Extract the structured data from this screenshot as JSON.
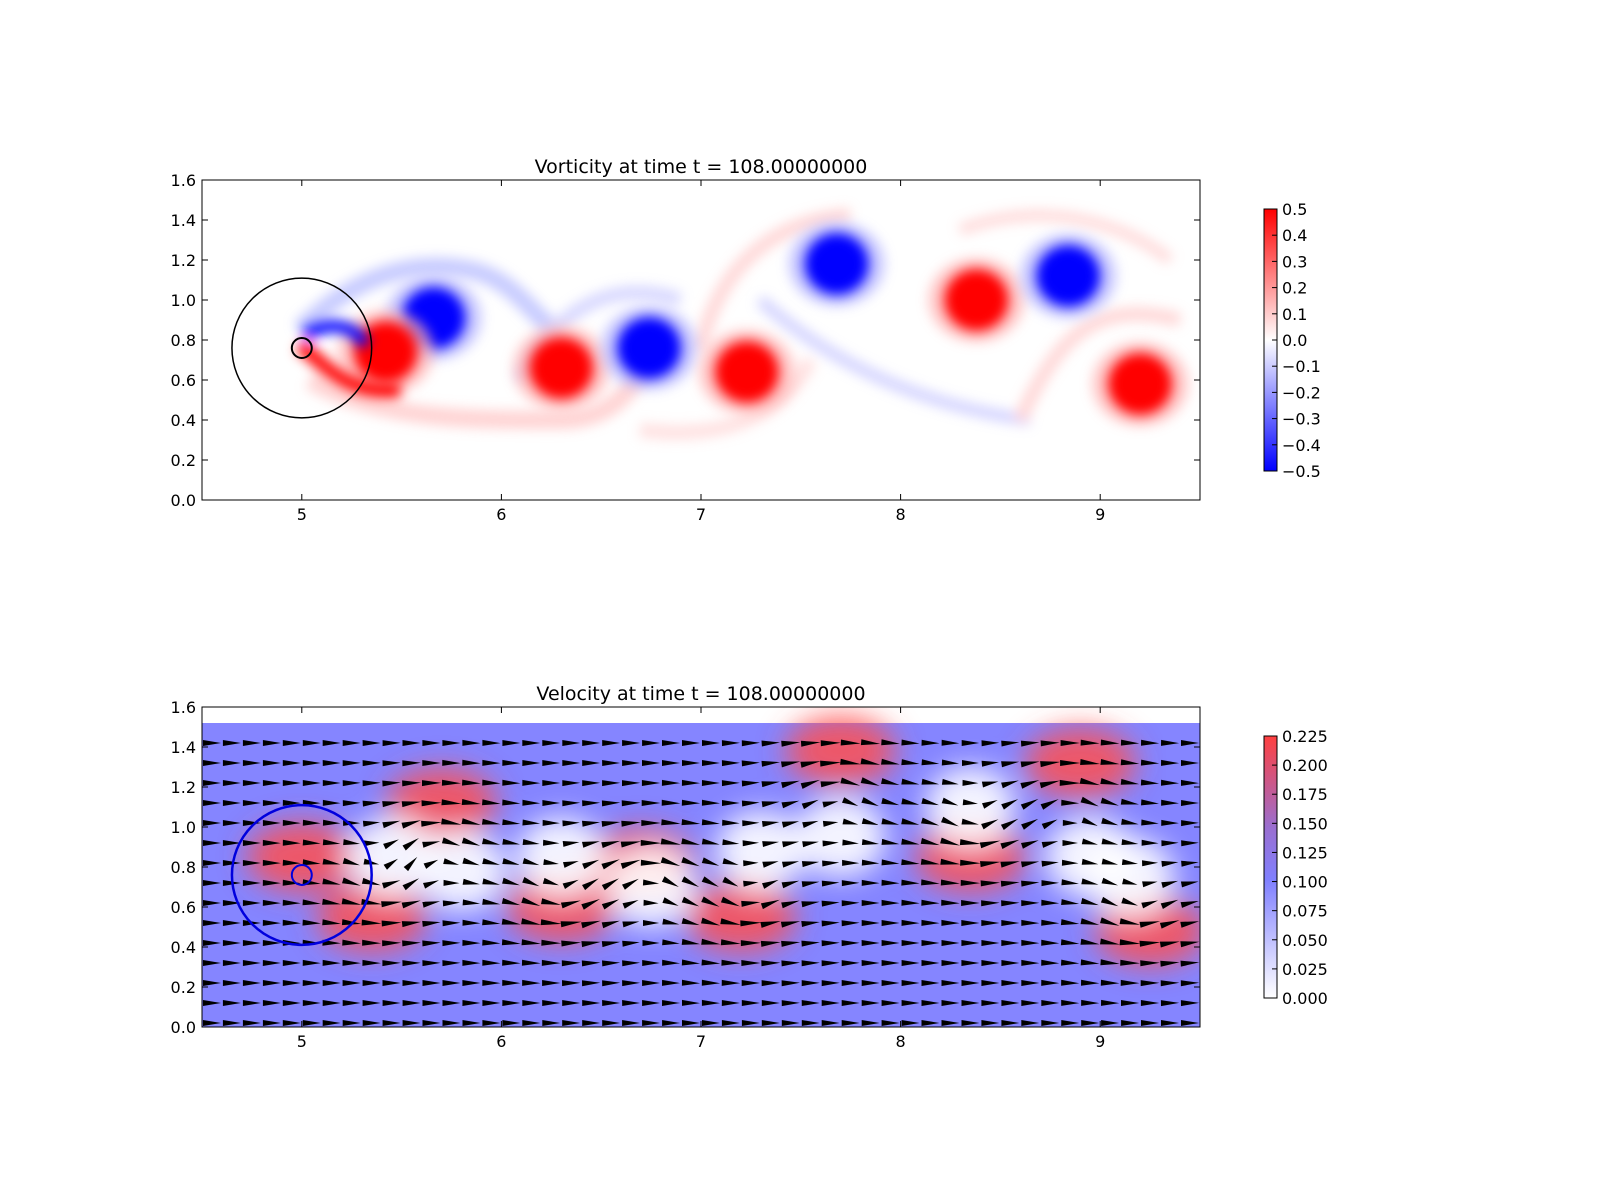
{
  "chart_data": [
    {
      "type": "heatmap",
      "title": "Vorticity at time t =   108.00000000",
      "xlim": [
        4.5,
        9.5
      ],
      "ylim": [
        0.0,
        1.6
      ],
      "xticks": [
        "5",
        "6",
        "7",
        "8",
        "9"
      ],
      "yticks": [
        "0.0",
        "0.2",
        "0.4",
        "0.6",
        "0.8",
        "1.0",
        "1.2",
        "1.4",
        "1.6"
      ],
      "colormap": "bwr",
      "colorbar": {
        "range": [
          -0.5,
          0.5
        ],
        "ticks": [
          "−0.5",
          "−0.4",
          "−0.3",
          "−0.2",
          "−0.1",
          "0.0",
          "0.1",
          "0.2",
          "0.3",
          "0.4",
          "0.5"
        ]
      },
      "cylinder": {
        "x": 5.0,
        "y": 0.76,
        "radius": 0.05
      },
      "outer_circle": {
        "x": 5.0,
        "y": 0.76,
        "radius": 0.35
      },
      "vortices": [
        {
          "x": 5.66,
          "y": 0.91,
          "sign": -1
        },
        {
          "x": 5.42,
          "y": 0.74,
          "sign": 1
        },
        {
          "x": 6.3,
          "y": 0.66,
          "sign": 1
        },
        {
          "x": 6.74,
          "y": 0.76,
          "sign": -1
        },
        {
          "x": 7.23,
          "y": 0.64,
          "sign": 1
        },
        {
          "x": 7.68,
          "y": 1.18,
          "sign": -1
        },
        {
          "x": 8.38,
          "y": 1.0,
          "sign": 1
        },
        {
          "x": 8.84,
          "y": 1.12,
          "sign": -1
        },
        {
          "x": 9.2,
          "y": 0.58,
          "sign": 1
        }
      ]
    },
    {
      "type": "heatmap",
      "title": "Velocity at time t =   108.00000000",
      "xlim": [
        4.5,
        9.5
      ],
      "ylim": [
        0.0,
        1.6
      ],
      "field_top": 1.52,
      "xticks": [
        "5",
        "6",
        "7",
        "8",
        "9"
      ],
      "yticks": [
        "0.0",
        "0.2",
        "0.4",
        "0.6",
        "0.8",
        "1.0",
        "1.2",
        "1.4",
        "1.6"
      ],
      "colormap": "white-blue-red",
      "quiver": true,
      "colorbar": {
        "range": [
          0.0,
          0.225
        ],
        "ticks": [
          "0.000",
          "0.025",
          "0.050",
          "0.075",
          "0.100",
          "0.125",
          "0.150",
          "0.175",
          "0.200",
          "0.225"
        ]
      },
      "cylinder": {
        "x": 5.0,
        "y": 0.76,
        "radius": 0.05
      },
      "outer_circle": {
        "x": 5.0,
        "y": 0.76,
        "radius": 0.35
      }
    }
  ]
}
